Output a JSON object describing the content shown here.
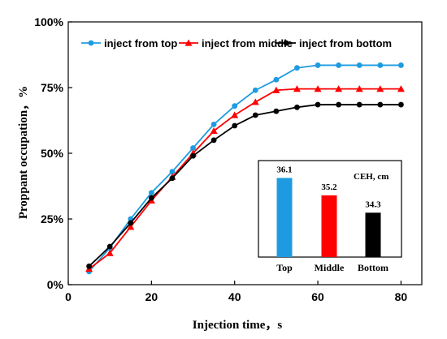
{
  "chart_data": [
    {
      "type": "line",
      "xlabel": "Injection time，s",
      "ylabel": "Proppant occupation，%",
      "xlim": [
        0,
        85
      ],
      "ylim": [
        0,
        100
      ],
      "xticks": [
        0,
        20,
        40,
        60,
        80
      ],
      "xtick_labels": [
        "0",
        "20",
        "40",
        "60",
        "80"
      ],
      "yticks": [
        0,
        25,
        50,
        75,
        100
      ],
      "ytick_labels": [
        "0%",
        "25%",
        "50%",
        "75%",
        "100%"
      ],
      "grid": false,
      "legend_position": "top",
      "x": [
        5,
        10,
        15,
        20,
        25,
        30,
        35,
        40,
        45,
        50,
        55,
        60,
        65,
        70,
        75,
        80
      ],
      "series": [
        {
          "name": "inject from top",
          "color": "#1e9be0",
          "marker": "circle",
          "values": [
            5,
            14,
            25,
            35,
            43,
            52,
            61,
            68,
            74,
            78,
            82.5,
            83.5,
            83.5,
            83.5,
            83.5,
            83.5
          ]
        },
        {
          "name": "inject from middle",
          "color": "#ff0000",
          "marker": "triangle",
          "values": [
            6,
            12,
            22,
            32,
            41,
            50,
            58.5,
            64.5,
            69.5,
            74,
            74.5,
            74.5,
            74.5,
            74.5,
            74.5,
            74.5
          ]
        },
        {
          "name": "inject from bottom",
          "color": "#000000",
          "marker": "circle",
          "values": [
            7,
            14.5,
            23.5,
            33,
            40.5,
            49,
            55,
            60.5,
            64.5,
            66,
            67.5,
            68.5,
            68.5,
            68.5,
            68.5,
            68.5
          ]
        }
      ]
    },
    {
      "type": "bar",
      "title": "CEH, cm",
      "categories": [
        "Top",
        "Middle",
        "Bottom"
      ],
      "values": [
        36.1,
        35.2,
        34.3
      ],
      "value_labels": [
        "36.1",
        "35.2",
        "34.3"
      ],
      "colors": [
        "#1e9be0",
        "#ff0000",
        "#000000"
      ],
      "ylim": [
        32,
        37
      ]
    }
  ]
}
